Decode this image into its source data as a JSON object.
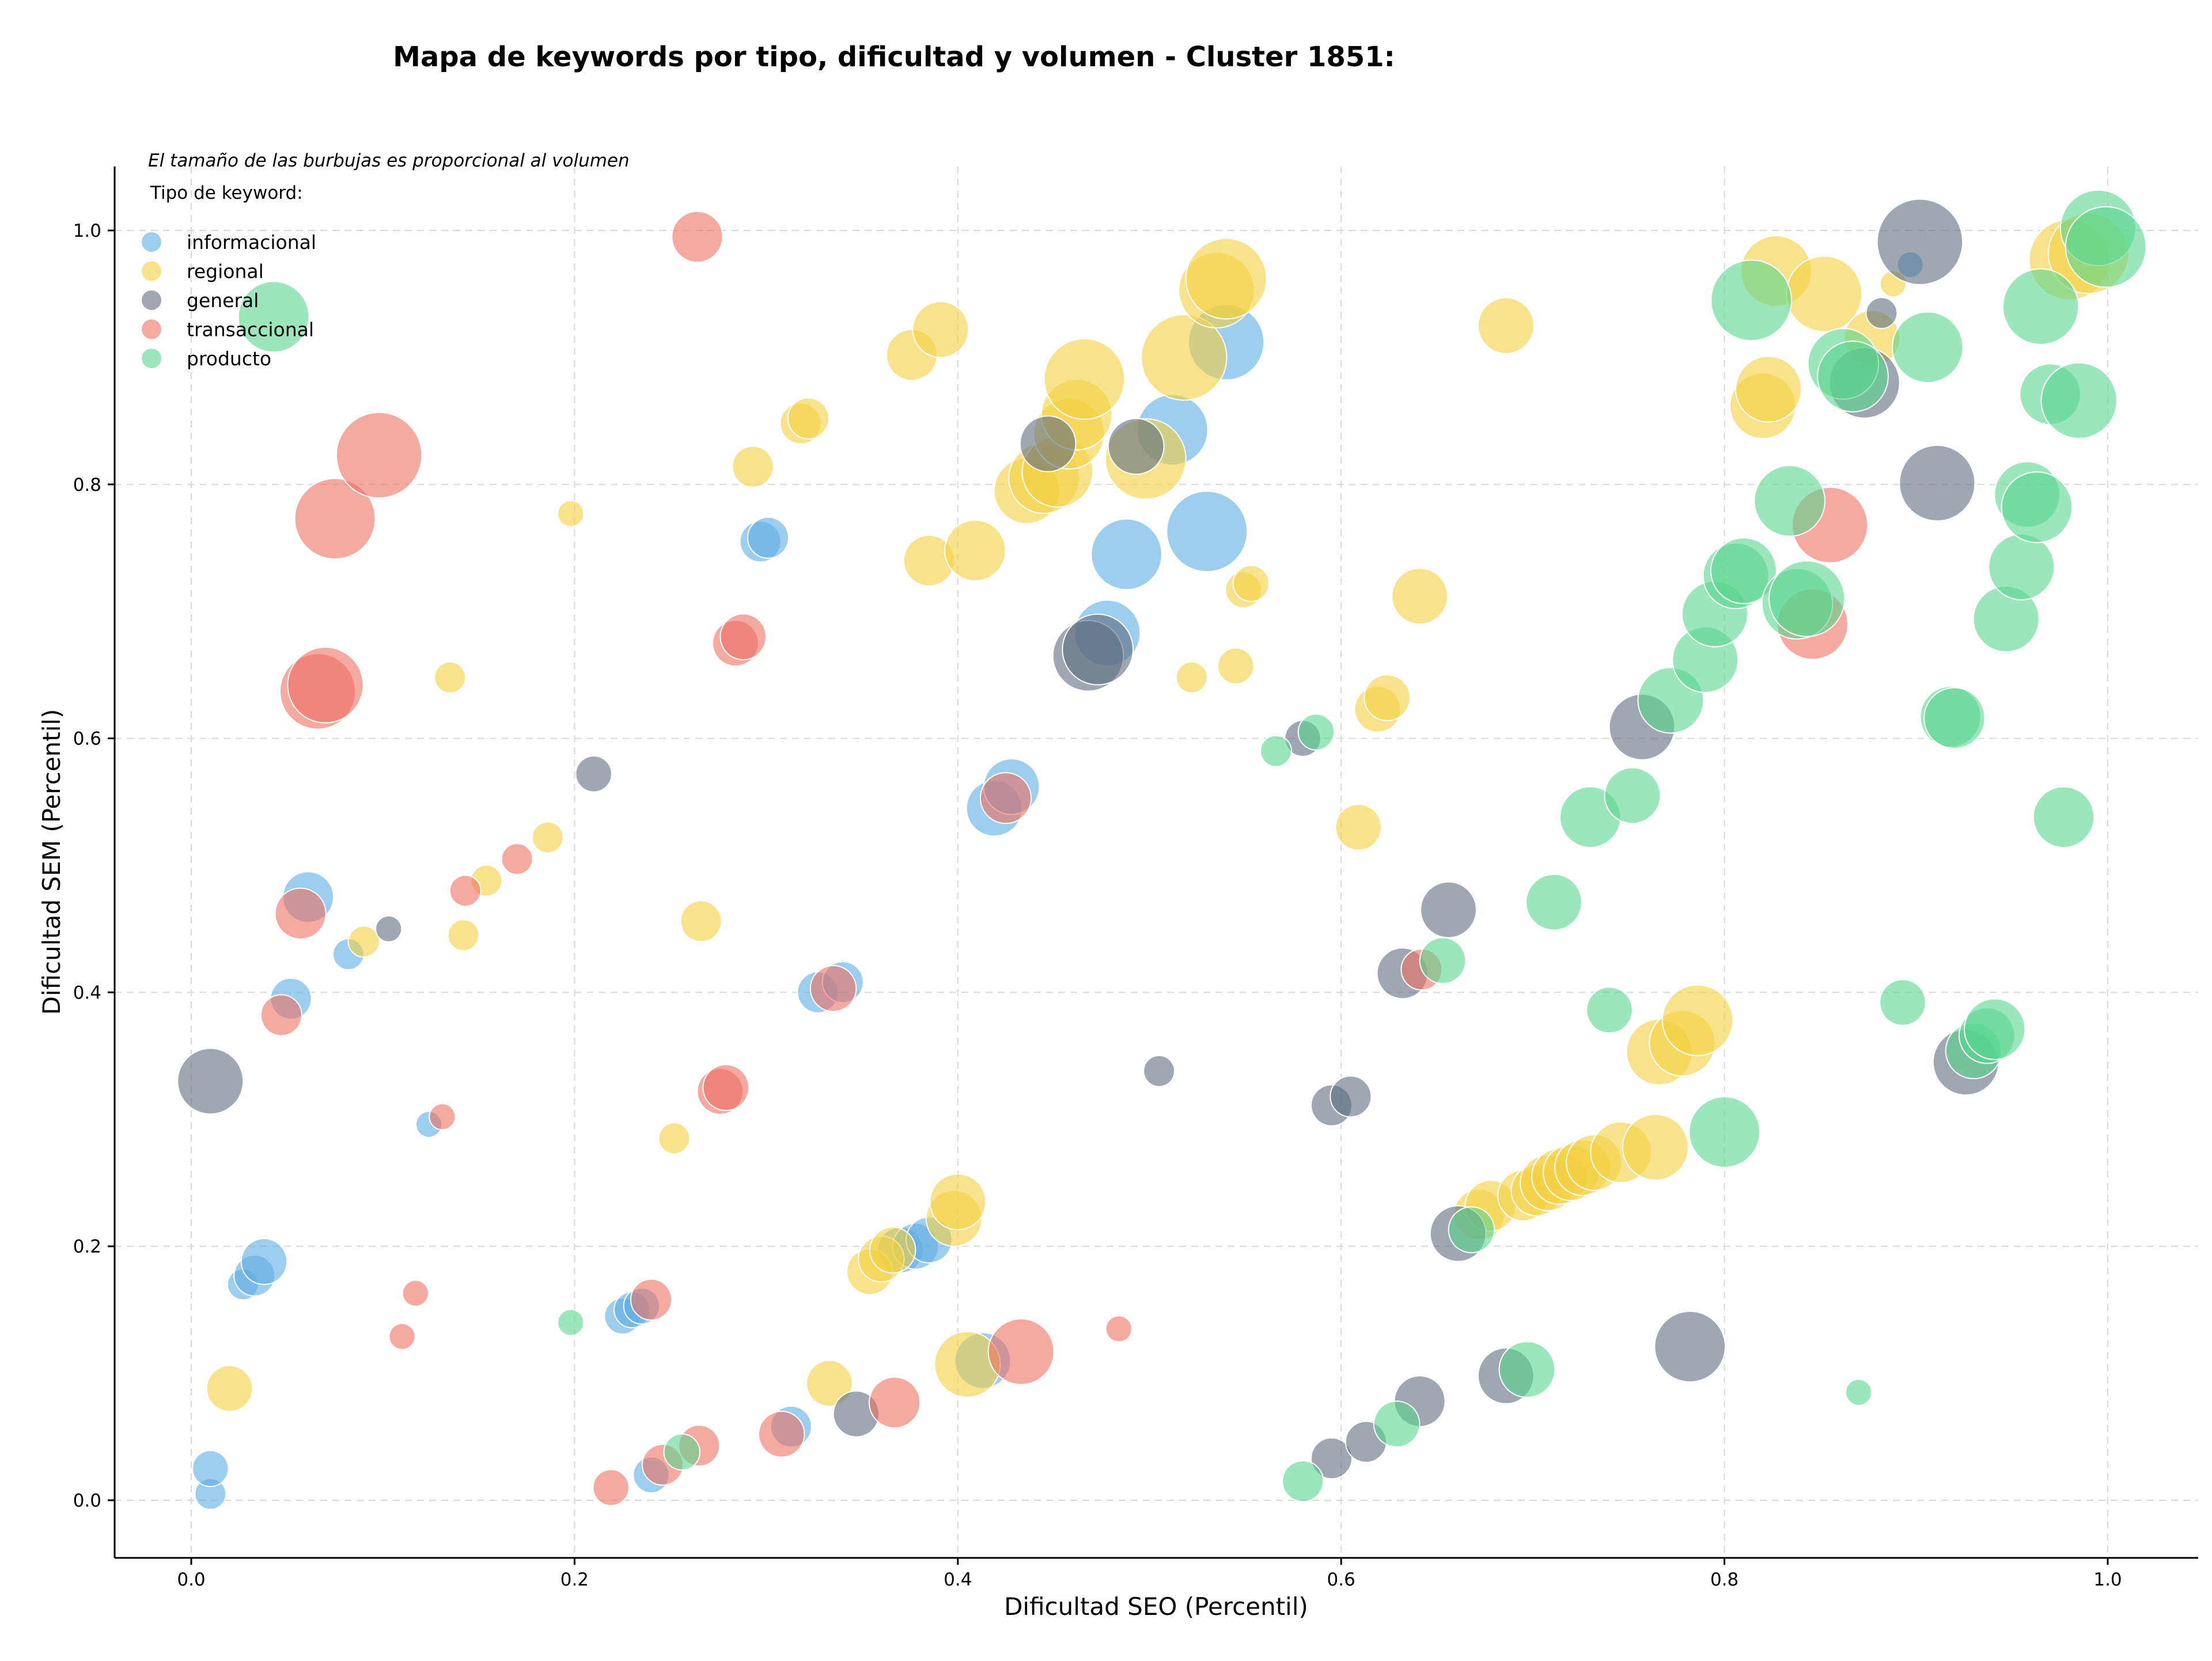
{
  "chart_data": {
    "type": "scatter",
    "title": "Mapa de keywords por tipo, dificultad y volumen - Cluster 1851:",
    "xlabel": "Dificultad SEO (Percentil)",
    "ylabel": "Dificultad SEM (Percentil)",
    "xlim": [
      -0.04,
      1.05
    ],
    "ylim": [
      -0.045,
      1.05
    ],
    "xticks": [
      "0.0",
      "0.2",
      "0.4",
      "0.6",
      "0.8",
      "1.0"
    ],
    "yticks": [
      "0.0",
      "0.2",
      "0.4",
      "0.6",
      "0.8",
      "1.0"
    ],
    "grid": true,
    "annotation": "El tamaño de las burbujas es proporcional al volumen",
    "legend": {
      "title": "Tipo de keyword:",
      "placement": "top-left"
    },
    "series": [
      {
        "name": "informacional",
        "color": "#5dade2",
        "points": [
          {
            "x": 0.01,
            "y": 0.005,
            "v": 3
          },
          {
            "x": 0.01,
            "y": 0.025,
            "v": 4
          },
          {
            "x": 0.027,
            "y": 0.17,
            "v": 3
          },
          {
            "x": 0.033,
            "y": 0.177,
            "v": 5
          },
          {
            "x": 0.038,
            "y": 0.188,
            "v": 6
          },
          {
            "x": 0.052,
            "y": 0.395,
            "v": 5
          },
          {
            "x": 0.061,
            "y": 0.475,
            "v": 7
          },
          {
            "x": 0.082,
            "y": 0.43,
            "v": 3
          },
          {
            "x": 0.124,
            "y": 0.296,
            "v": 2
          },
          {
            "x": 0.225,
            "y": 0.145,
            "v": 4
          },
          {
            "x": 0.23,
            "y": 0.15,
            "v": 4
          },
          {
            "x": 0.235,
            "y": 0.153,
            "v": 4
          },
          {
            "x": 0.24,
            "y": 0.02,
            "v": 4
          },
          {
            "x": 0.297,
            "y": 0.755,
            "v": 5
          },
          {
            "x": 0.301,
            "y": 0.758,
            "v": 5
          },
          {
            "x": 0.313,
            "y": 0.058,
            "v": 5
          },
          {
            "x": 0.327,
            "y": 0.4,
            "v": 5
          },
          {
            "x": 0.34,
            "y": 0.408,
            "v": 5
          },
          {
            "x": 0.37,
            "y": 0.197,
            "v": 6
          },
          {
            "x": 0.378,
            "y": 0.2,
            "v": 6
          },
          {
            "x": 0.385,
            "y": 0.205,
            "v": 6
          },
          {
            "x": 0.413,
            "y": 0.11,
            "v": 8
          },
          {
            "x": 0.419,
            "y": 0.545,
            "v": 8
          },
          {
            "x": 0.428,
            "y": 0.562,
            "v": 8
          },
          {
            "x": 0.478,
            "y": 0.683,
            "v": 10
          },
          {
            "x": 0.488,
            "y": 0.745,
            "v": 11
          },
          {
            "x": 0.512,
            "y": 0.843,
            "v": 11
          },
          {
            "x": 0.53,
            "y": 0.763,
            "v": 13
          },
          {
            "x": 0.54,
            "y": 0.912,
            "v": 12
          },
          {
            "x": 0.897,
            "y": 0.973,
            "v": 2
          }
        ]
      },
      {
        "name": "regional",
        "color": "#f4d03f",
        "points": [
          {
            "x": 0.02,
            "y": 0.088,
            "v": 6
          },
          {
            "x": 0.09,
            "y": 0.44,
            "v": 3
          },
          {
            "x": 0.135,
            "y": 0.648,
            "v": 3
          },
          {
            "x": 0.142,
            "y": 0.445,
            "v": 3
          },
          {
            "x": 0.154,
            "y": 0.488,
            "v": 3
          },
          {
            "x": 0.186,
            "y": 0.522,
            "v": 3
          },
          {
            "x": 0.198,
            "y": 0.777,
            "v": 2
          },
          {
            "x": 0.252,
            "y": 0.285,
            "v": 3
          },
          {
            "x": 0.266,
            "y": 0.456,
            "v": 5
          },
          {
            "x": 0.293,
            "y": 0.814,
            "v": 5
          },
          {
            "x": 0.318,
            "y": 0.848,
            "v": 5
          },
          {
            "x": 0.322,
            "y": 0.852,
            "v": 5
          },
          {
            "x": 0.333,
            "y": 0.092,
            "v": 6
          },
          {
            "x": 0.354,
            "y": 0.18,
            "v": 6
          },
          {
            "x": 0.36,
            "y": 0.19,
            "v": 6
          },
          {
            "x": 0.366,
            "y": 0.197,
            "v": 6
          },
          {
            "x": 0.376,
            "y": 0.902,
            "v": 7
          },
          {
            "x": 0.385,
            "y": 0.74,
            "v": 7
          },
          {
            "x": 0.391,
            "y": 0.922,
            "v": 8
          },
          {
            "x": 0.398,
            "y": 0.222,
            "v": 8
          },
          {
            "x": 0.4,
            "y": 0.235,
            "v": 8
          },
          {
            "x": 0.405,
            "y": 0.107,
            "v": 10
          },
          {
            "x": 0.409,
            "y": 0.748,
            "v": 9
          },
          {
            "x": 0.436,
            "y": 0.795,
            "v": 10
          },
          {
            "x": 0.445,
            "y": 0.805,
            "v": 11
          },
          {
            "x": 0.452,
            "y": 0.81,
            "v": 11
          },
          {
            "x": 0.458,
            "y": 0.84,
            "v": 11
          },
          {
            "x": 0.462,
            "y": 0.855,
            "v": 11
          },
          {
            "x": 0.466,
            "y": 0.883,
            "v": 13
          },
          {
            "x": 0.498,
            "y": 0.82,
            "v": 13
          },
          {
            "x": 0.518,
            "y": 0.9,
            "v": 14
          },
          {
            "x": 0.522,
            "y": 0.648,
            "v": 3
          },
          {
            "x": 0.535,
            "y": 0.953,
            "v": 12
          },
          {
            "x": 0.54,
            "y": 0.962,
            "v": 13
          },
          {
            "x": 0.545,
            "y": 0.657,
            "v": 4
          },
          {
            "x": 0.549,
            "y": 0.717,
            "v": 4
          },
          {
            "x": 0.553,
            "y": 0.722,
            "v": 4
          },
          {
            "x": 0.609,
            "y": 0.53,
            "v": 6
          },
          {
            "x": 0.619,
            "y": 0.623,
            "v": 6
          },
          {
            "x": 0.624,
            "y": 0.632,
            "v": 6
          },
          {
            "x": 0.641,
            "y": 0.712,
            "v": 8
          },
          {
            "x": 0.672,
            "y": 0.225,
            "v": 7
          },
          {
            "x": 0.678,
            "y": 0.232,
            "v": 7
          },
          {
            "x": 0.686,
            "y": 0.925,
            "v": 8
          },
          {
            "x": 0.695,
            "y": 0.24,
            "v": 7
          },
          {
            "x": 0.702,
            "y": 0.244,
            "v": 7
          },
          {
            "x": 0.708,
            "y": 0.25,
            "v": 8
          },
          {
            "x": 0.714,
            "y": 0.255,
            "v": 8
          },
          {
            "x": 0.72,
            "y": 0.258,
            "v": 8
          },
          {
            "x": 0.726,
            "y": 0.262,
            "v": 8
          },
          {
            "x": 0.732,
            "y": 0.266,
            "v": 8
          },
          {
            "x": 0.746,
            "y": 0.274,
            "v": 9
          },
          {
            "x": 0.766,
            "y": 0.353,
            "v": 10
          },
          {
            "x": 0.764,
            "y": 0.278,
            "v": 10
          },
          {
            "x": 0.778,
            "y": 0.36,
            "v": 10
          },
          {
            "x": 0.786,
            "y": 0.378,
            "v": 11
          },
          {
            "x": 0.82,
            "y": 0.862,
            "v": 10
          },
          {
            "x": 0.823,
            "y": 0.875,
            "v": 10
          },
          {
            "x": 0.827,
            "y": 0.968,
            "v": 11
          },
          {
            "x": 0.852,
            "y": 0.95,
            "v": 12
          },
          {
            "x": 0.877,
            "y": 0.915,
            "v": 8
          },
          {
            "x": 0.888,
            "y": 0.958,
            "v": 2
          },
          {
            "x": 0.98,
            "y": 0.977,
            "v": 13
          },
          {
            "x": 0.99,
            "y": 0.982,
            "v": 13
          }
        ]
      },
      {
        "name": "general",
        "color": "#5d6d7e",
        "points": [
          {
            "x": 0.01,
            "y": 0.33,
            "v": 10
          },
          {
            "x": 0.103,
            "y": 0.45,
            "v": 2
          },
          {
            "x": 0.21,
            "y": 0.572,
            "v": 4
          },
          {
            "x": 0.347,
            "y": 0.068,
            "v": 6
          },
          {
            "x": 0.447,
            "y": 0.832,
            "v": 8
          },
          {
            "x": 0.468,
            "y": 0.665,
            "v": 11
          },
          {
            "x": 0.473,
            "y": 0.67,
            "v": 11
          },
          {
            "x": 0.493,
            "y": 0.83,
            "v": 8
          },
          {
            "x": 0.505,
            "y": 0.338,
            "v": 3
          },
          {
            "x": 0.595,
            "y": 0.033,
            "v": 5
          },
          {
            "x": 0.595,
            "y": 0.311,
            "v": 5
          },
          {
            "x": 0.605,
            "y": 0.318,
            "v": 5
          },
          {
            "x": 0.58,
            "y": 0.6,
            "v": 4
          },
          {
            "x": 0.613,
            "y": 0.046,
            "v": 5
          },
          {
            "x": 0.632,
            "y": 0.415,
            "v": 7
          },
          {
            "x": 0.641,
            "y": 0.078,
            "v": 7
          },
          {
            "x": 0.656,
            "y": 0.465,
            "v": 8
          },
          {
            "x": 0.661,
            "y": 0.21,
            "v": 8
          },
          {
            "x": 0.686,
            "y": 0.098,
            "v": 8
          },
          {
            "x": 0.757,
            "y": 0.609,
            "v": 10
          },
          {
            "x": 0.782,
            "y": 0.121,
            "v": 11
          },
          {
            "x": 0.873,
            "y": 0.88,
            "v": 11
          },
          {
            "x": 0.882,
            "y": 0.935,
            "v": 3
          },
          {
            "x": 0.902,
            "y": 0.991,
            "v": 14
          },
          {
            "x": 0.911,
            "y": 0.801,
            "v": 12
          },
          {
            "x": 0.926,
            "y": 0.345,
            "v": 10
          }
        ]
      },
      {
        "name": "transaccional",
        "color": "#ec7063",
        "points": [
          {
            "x": 0.047,
            "y": 0.382,
            "v": 5
          },
          {
            "x": 0.057,
            "y": 0.462,
            "v": 7
          },
          {
            "x": 0.066,
            "y": 0.637,
            "v": 12
          },
          {
            "x": 0.07,
            "y": 0.642,
            "v": 12
          },
          {
            "x": 0.075,
            "y": 0.773,
            "v": 13
          },
          {
            "x": 0.098,
            "y": 0.823,
            "v": 14
          },
          {
            "x": 0.11,
            "y": 0.129,
            "v": 2
          },
          {
            "x": 0.117,
            "y": 0.163,
            "v": 2
          },
          {
            "x": 0.131,
            "y": 0.302,
            "v": 2
          },
          {
            "x": 0.143,
            "y": 0.48,
            "v": 3
          },
          {
            "x": 0.17,
            "y": 0.505,
            "v": 3
          },
          {
            "x": 0.219,
            "y": 0.01,
            "v": 4
          },
          {
            "x": 0.24,
            "y": 0.158,
            "v": 5
          },
          {
            "x": 0.246,
            "y": 0.028,
            "v": 5
          },
          {
            "x": 0.264,
            "y": 0.995,
            "v": 7
          },
          {
            "x": 0.265,
            "y": 0.043,
            "v": 5
          },
          {
            "x": 0.276,
            "y": 0.322,
            "v": 6
          },
          {
            "x": 0.279,
            "y": 0.325,
            "v": 6
          },
          {
            "x": 0.284,
            "y": 0.675,
            "v": 6
          },
          {
            "x": 0.288,
            "y": 0.68,
            "v": 6
          },
          {
            "x": 0.308,
            "y": 0.052,
            "v": 6
          },
          {
            "x": 0.335,
            "y": 0.403,
            "v": 6
          },
          {
            "x": 0.367,
            "y": 0.077,
            "v": 7
          },
          {
            "x": 0.425,
            "y": 0.553,
            "v": 7
          },
          {
            "x": 0.433,
            "y": 0.117,
            "v": 10
          },
          {
            "x": 0.484,
            "y": 0.135,
            "v": 2
          },
          {
            "x": 0.642,
            "y": 0.418,
            "v": 5
          },
          {
            "x": 0.846,
            "y": 0.69,
            "v": 11
          },
          {
            "x": 0.855,
            "y": 0.768,
            "v": 12
          }
        ]
      },
      {
        "name": "producto",
        "color": "#58d68d",
        "points": [
          {
            "x": 0.043,
            "y": 0.932,
            "v": 11
          },
          {
            "x": 0.198,
            "y": 0.14,
            "v": 2
          },
          {
            "x": 0.256,
            "y": 0.038,
            "v": 4
          },
          {
            "x": 0.566,
            "y": 0.59,
            "v": 3
          },
          {
            "x": 0.58,
            "y": 0.015,
            "v": 5
          },
          {
            "x": 0.587,
            "y": 0.605,
            "v": 4
          },
          {
            "x": 0.629,
            "y": 0.06,
            "v": 6
          },
          {
            "x": 0.653,
            "y": 0.425,
            "v": 6
          },
          {
            "x": 0.668,
            "y": 0.213,
            "v": 6
          },
          {
            "x": 0.697,
            "y": 0.103,
            "v": 8
          },
          {
            "x": 0.711,
            "y": 0.471,
            "v": 8
          },
          {
            "x": 0.73,
            "y": 0.538,
            "v": 9
          },
          {
            "x": 0.74,
            "y": 0.386,
            "v": 6
          },
          {
            "x": 0.752,
            "y": 0.555,
            "v": 8
          },
          {
            "x": 0.772,
            "y": 0.63,
            "v": 10
          },
          {
            "x": 0.79,
            "y": 0.662,
            "v": 10
          },
          {
            "x": 0.795,
            "y": 0.698,
            "v": 10
          },
          {
            "x": 0.8,
            "y": 0.29,
            "v": 11
          },
          {
            "x": 0.806,
            "y": 0.728,
            "v": 10
          },
          {
            "x": 0.81,
            "y": 0.732,
            "v": 10
          },
          {
            "x": 0.814,
            "y": 0.945,
            "v": 13
          },
          {
            "x": 0.834,
            "y": 0.787,
            "v": 11
          },
          {
            "x": 0.838,
            "y": 0.706,
            "v": 11
          },
          {
            "x": 0.843,
            "y": 0.71,
            "v": 12
          },
          {
            "x": 0.862,
            "y": 0.895,
            "v": 11
          },
          {
            "x": 0.867,
            "y": 0.885,
            "v": 11
          },
          {
            "x": 0.87,
            "y": 0.085,
            "v": 2
          },
          {
            "x": 0.893,
            "y": 0.392,
            "v": 6
          },
          {
            "x": 0.906,
            "y": 0.908,
            "v": 11
          },
          {
            "x": 0.918,
            "y": 0.617,
            "v": 9
          },
          {
            "x": 0.92,
            "y": 0.616,
            "v": 9
          },
          {
            "x": 0.93,
            "y": 0.354,
            "v": 8
          },
          {
            "x": 0.937,
            "y": 0.366,
            "v": 8
          },
          {
            "x": 0.941,
            "y": 0.371,
            "v": 9
          },
          {
            "x": 0.947,
            "y": 0.694,
            "v": 10
          },
          {
            "x": 0.955,
            "y": 0.735,
            "v": 10
          },
          {
            "x": 0.958,
            "y": 0.792,
            "v": 10
          },
          {
            "x": 0.963,
            "y": 0.782,
            "v": 11
          },
          {
            "x": 0.965,
            "y": 0.94,
            "v": 12
          },
          {
            "x": 0.97,
            "y": 0.871,
            "v": 9
          },
          {
            "x": 0.977,
            "y": 0.538,
            "v": 9
          },
          {
            "x": 0.985,
            "y": 0.866,
            "v": 12
          },
          {
            "x": 0.995,
            "y": 1.002,
            "v": 12
          },
          {
            "x": 0.999,
            "y": 0.987,
            "v": 13
          }
        ]
      }
    ]
  }
}
